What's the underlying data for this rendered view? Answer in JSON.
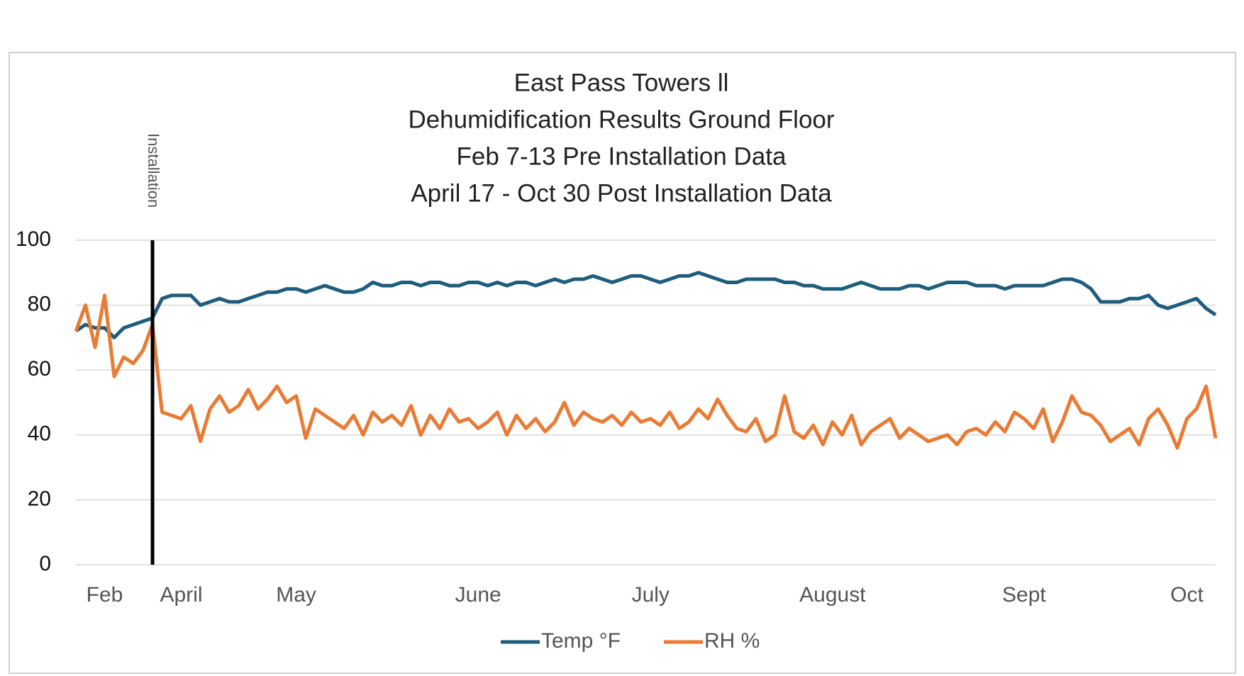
{
  "chart_data": {
    "type": "line",
    "title": [
      "East Pass Towers ll",
      "Dehumidification Results Ground Floor",
      "Feb 7-13 Pre Installation Data",
      "April 17 - Oct 30 Post Installation Data"
    ],
    "categories": [
      null,
      null,
      null,
      "Feb",
      null,
      null,
      null,
      null,
      null,
      null,
      null,
      "April",
      null,
      null,
      null,
      null,
      null,
      null,
      null,
      null,
      null,
      null,
      null,
      "May",
      null,
      null,
      null,
      null,
      null,
      null,
      null,
      null,
      null,
      null,
      null,
      null,
      null,
      null,
      null,
      null,
      null,
      null,
      "June",
      null,
      null,
      null,
      null,
      null,
      null,
      null,
      null,
      null,
      null,
      null,
      null,
      null,
      null,
      null,
      null,
      null,
      "July",
      null,
      null,
      null,
      null,
      null,
      null,
      null,
      null,
      null,
      null,
      null,
      null,
      null,
      null,
      null,
      null,
      null,
      null,
      "August",
      null,
      null,
      null,
      null,
      null,
      null,
      null,
      null,
      null,
      null,
      null,
      null,
      null,
      null,
      null,
      null,
      null,
      null,
      null,
      "Sept",
      null,
      null,
      null,
      null,
      null,
      null,
      null,
      null,
      null,
      null,
      null,
      null,
      null,
      null,
      null,
      null,
      "Oct",
      null,
      null,
      null
    ],
    "series": [
      {
        "name": "Temp °F",
        "color": "#1f5d7c",
        "values": [
          72,
          74,
          73,
          73,
          70,
          73,
          74,
          75,
          76,
          82,
          83,
          83,
          83,
          80,
          81,
          82,
          81,
          81,
          82,
          83,
          84,
          84,
          85,
          85,
          84,
          85,
          86,
          85,
          84,
          84,
          85,
          87,
          86,
          86,
          87,
          87,
          86,
          87,
          87,
          86,
          86,
          87,
          87,
          86,
          87,
          86,
          87,
          87,
          86,
          87,
          88,
          87,
          88,
          88,
          89,
          88,
          87,
          88,
          89,
          89,
          88,
          87,
          88,
          89,
          89,
          90,
          89,
          88,
          87,
          87,
          88,
          88,
          88,
          88,
          87,
          87,
          86,
          86,
          85,
          85,
          85,
          86,
          87,
          86,
          85,
          85,
          85,
          86,
          86,
          85,
          86,
          87,
          87,
          87,
          86,
          86,
          86,
          85,
          86,
          86,
          86,
          86,
          87,
          88,
          88,
          87,
          85,
          81,
          81,
          81,
          82,
          82,
          83,
          80,
          79,
          80,
          81,
          82,
          79,
          77
        ]
      },
      {
        "name": "RH %",
        "color": "#e97b35",
        "values": [
          72,
          80,
          67,
          83,
          58,
          64,
          62,
          66,
          74,
          47,
          46,
          45,
          49,
          38,
          48,
          52,
          47,
          49,
          54,
          48,
          51,
          55,
          50,
          52,
          39,
          48,
          46,
          44,
          42,
          46,
          40,
          47,
          44,
          46,
          43,
          49,
          40,
          46,
          42,
          48,
          44,
          45,
          42,
          44,
          47,
          40,
          46,
          42,
          45,
          41,
          44,
          50,
          43,
          47,
          45,
          44,
          46,
          43,
          47,
          44,
          45,
          43,
          47,
          42,
          44,
          48,
          45,
          51,
          46,
          42,
          41,
          45,
          38,
          40,
          52,
          41,
          39,
          43,
          37,
          44,
          40,
          46,
          37,
          41,
          43,
          45,
          39,
          42,
          40,
          38,
          39,
          40,
          37,
          41,
          42,
          40,
          44,
          41,
          47,
          45,
          42,
          48,
          38,
          44,
          52,
          47,
          46,
          43,
          38,
          40,
          42,
          37,
          45,
          48,
          43,
          36,
          45,
          48,
          55,
          39
        ]
      }
    ],
    "annotation": {
      "text": "Installation",
      "at": 8
    },
    "ylim": [
      0,
      100
    ],
    "yticks": [
      0,
      20,
      40,
      60,
      80,
      100
    ],
    "grid": true,
    "legend": "bottom"
  }
}
